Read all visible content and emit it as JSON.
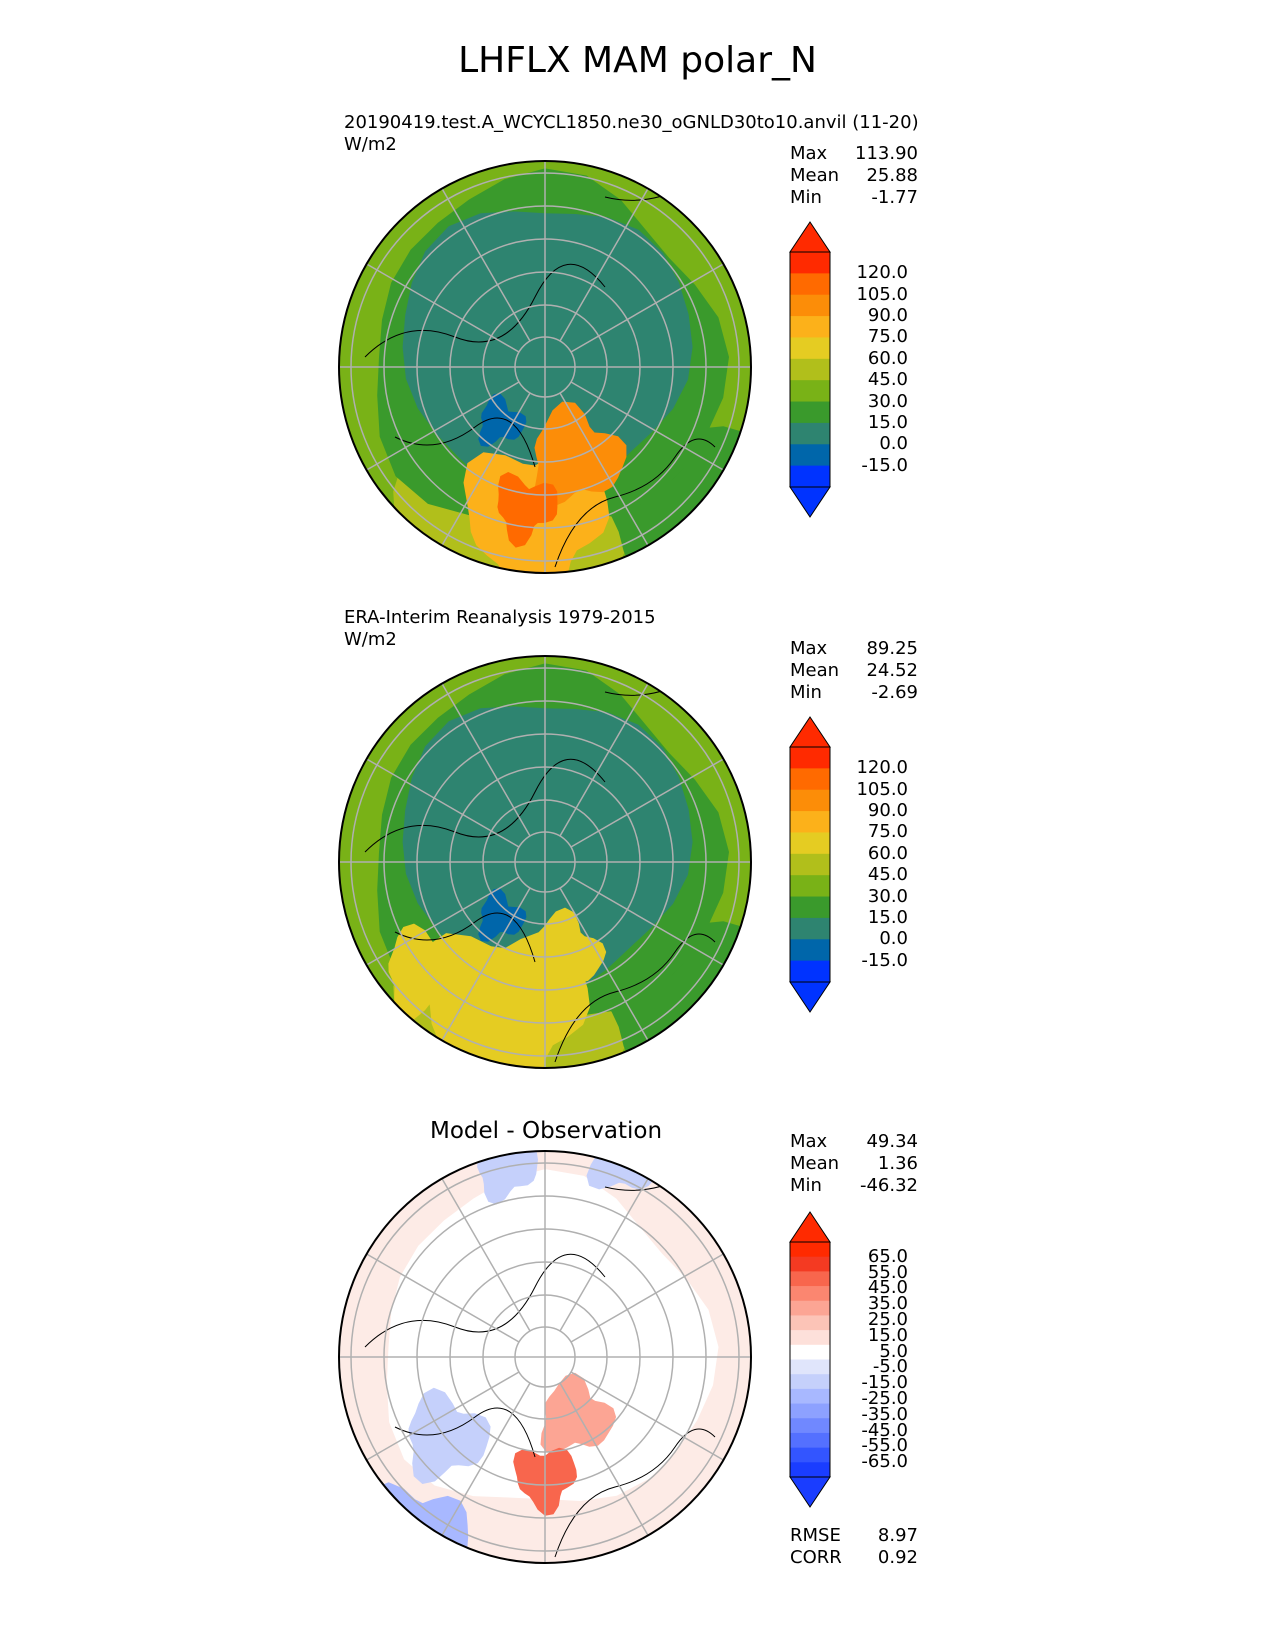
{
  "title": "LHFLX MAM polar_N",
  "panels": [
    {
      "name": "test",
      "title_line1": "20190419.test.A_WCYCL1850.ne30_oGNLD30to10.anvil (11-20)",
      "title_line2": "W/m2",
      "stats": [
        {
          "label": "Max",
          "value": "113.90"
        },
        {
          "label": "Mean",
          "value": "25.88"
        },
        {
          "label": "Min",
          "value": "-1.77"
        }
      ]
    },
    {
      "name": "reference",
      "title_line1": "ERA-Interim Reanalysis 1979-2015",
      "title_line2": "W/m2",
      "stats": [
        {
          "label": "Max",
          "value": "89.25"
        },
        {
          "label": "Mean",
          "value": "24.52"
        },
        {
          "label": "Min",
          "value": "-2.69"
        }
      ]
    },
    {
      "name": "diff",
      "title_center": "Model - Observation",
      "stats": [
        {
          "label": "Max",
          "value": "49.34"
        },
        {
          "label": "Mean",
          "value": "1.36"
        },
        {
          "label": "Min",
          "value": "-46.32"
        }
      ],
      "metrics": [
        {
          "label": "RMSE",
          "value": "8.97"
        },
        {
          "label": "CORR",
          "value": "0.92"
        }
      ]
    }
  ],
  "chart_data": [
    {
      "type": "heatmap",
      "projection": "north polar stereographic",
      "variable": "LHFLX",
      "season": "MAM",
      "units": "W/m2",
      "colorbar": {
        "ticks": [
          "120.0",
          "105.0",
          "90.0",
          "75.0",
          "60.0",
          "45.0",
          "30.0",
          "15.0",
          "0.0",
          "-15.0"
        ],
        "levels": [
          -25,
          -15,
          -5,
          0,
          15,
          30,
          45,
          60,
          75,
          90,
          105,
          120,
          135
        ],
        "colors": [
          "#0033ff",
          "#0066aa",
          "#2e8470",
          "#3a9a2c",
          "#79b217",
          "#b1bf1b",
          "#e5cc22",
          "#fcb11a",
          "#fc8d08",
          "#ff6a00",
          "#ff2a00"
        ],
        "extend": "both",
        "upper_arrow_color": "#ff2a00",
        "lower_arrow_color": "#0033ff"
      }
    },
    {
      "type": "heatmap",
      "projection": "north polar stereographic",
      "variable": "LHFLX",
      "season": "MAM",
      "units": "W/m2",
      "colorbar": {
        "ticks": [
          "120.0",
          "105.0",
          "90.0",
          "75.0",
          "60.0",
          "45.0",
          "30.0",
          "15.0",
          "0.0",
          "-15.0"
        ],
        "levels": [
          -25,
          -15,
          -5,
          0,
          15,
          30,
          45,
          60,
          75,
          90,
          105,
          120,
          135
        ],
        "colors": [
          "#0033ff",
          "#0066aa",
          "#2e8470",
          "#3a9a2c",
          "#79b217",
          "#b1bf1b",
          "#e5cc22",
          "#fcb11a",
          "#fc8d08",
          "#ff6a00",
          "#ff2a00"
        ],
        "extend": "both",
        "upper_arrow_color": "#ff2a00",
        "lower_arrow_color": "#0033ff"
      }
    },
    {
      "type": "heatmap",
      "projection": "north polar stereographic",
      "variable": "LHFLX difference",
      "season": "MAM",
      "units": "W/m2",
      "colorbar": {
        "ticks": [
          "65.0",
          "55.0",
          "45.0",
          "35.0",
          "25.0",
          "15.0",
          "5.0",
          "-5.0",
          "-15.0",
          "-25.0",
          "-35.0",
          "-45.0",
          "-55.0",
          "-65.0"
        ],
        "colors": [
          "#1a3dff",
          "#3355ff",
          "#5470ff",
          "#7088ff",
          "#8da1ff",
          "#a8b8ff",
          "#c5d0fb",
          "#e0e5fb",
          "#ffffff",
          "#fde0da",
          "#fcc4b7",
          "#fca594",
          "#fb8670",
          "#f8664d",
          "#f43a22",
          "#ff2a00"
        ],
        "extend": "both",
        "upper_arrow_color": "#ff2a00",
        "lower_arrow_color": "#1a3dff"
      }
    }
  ]
}
